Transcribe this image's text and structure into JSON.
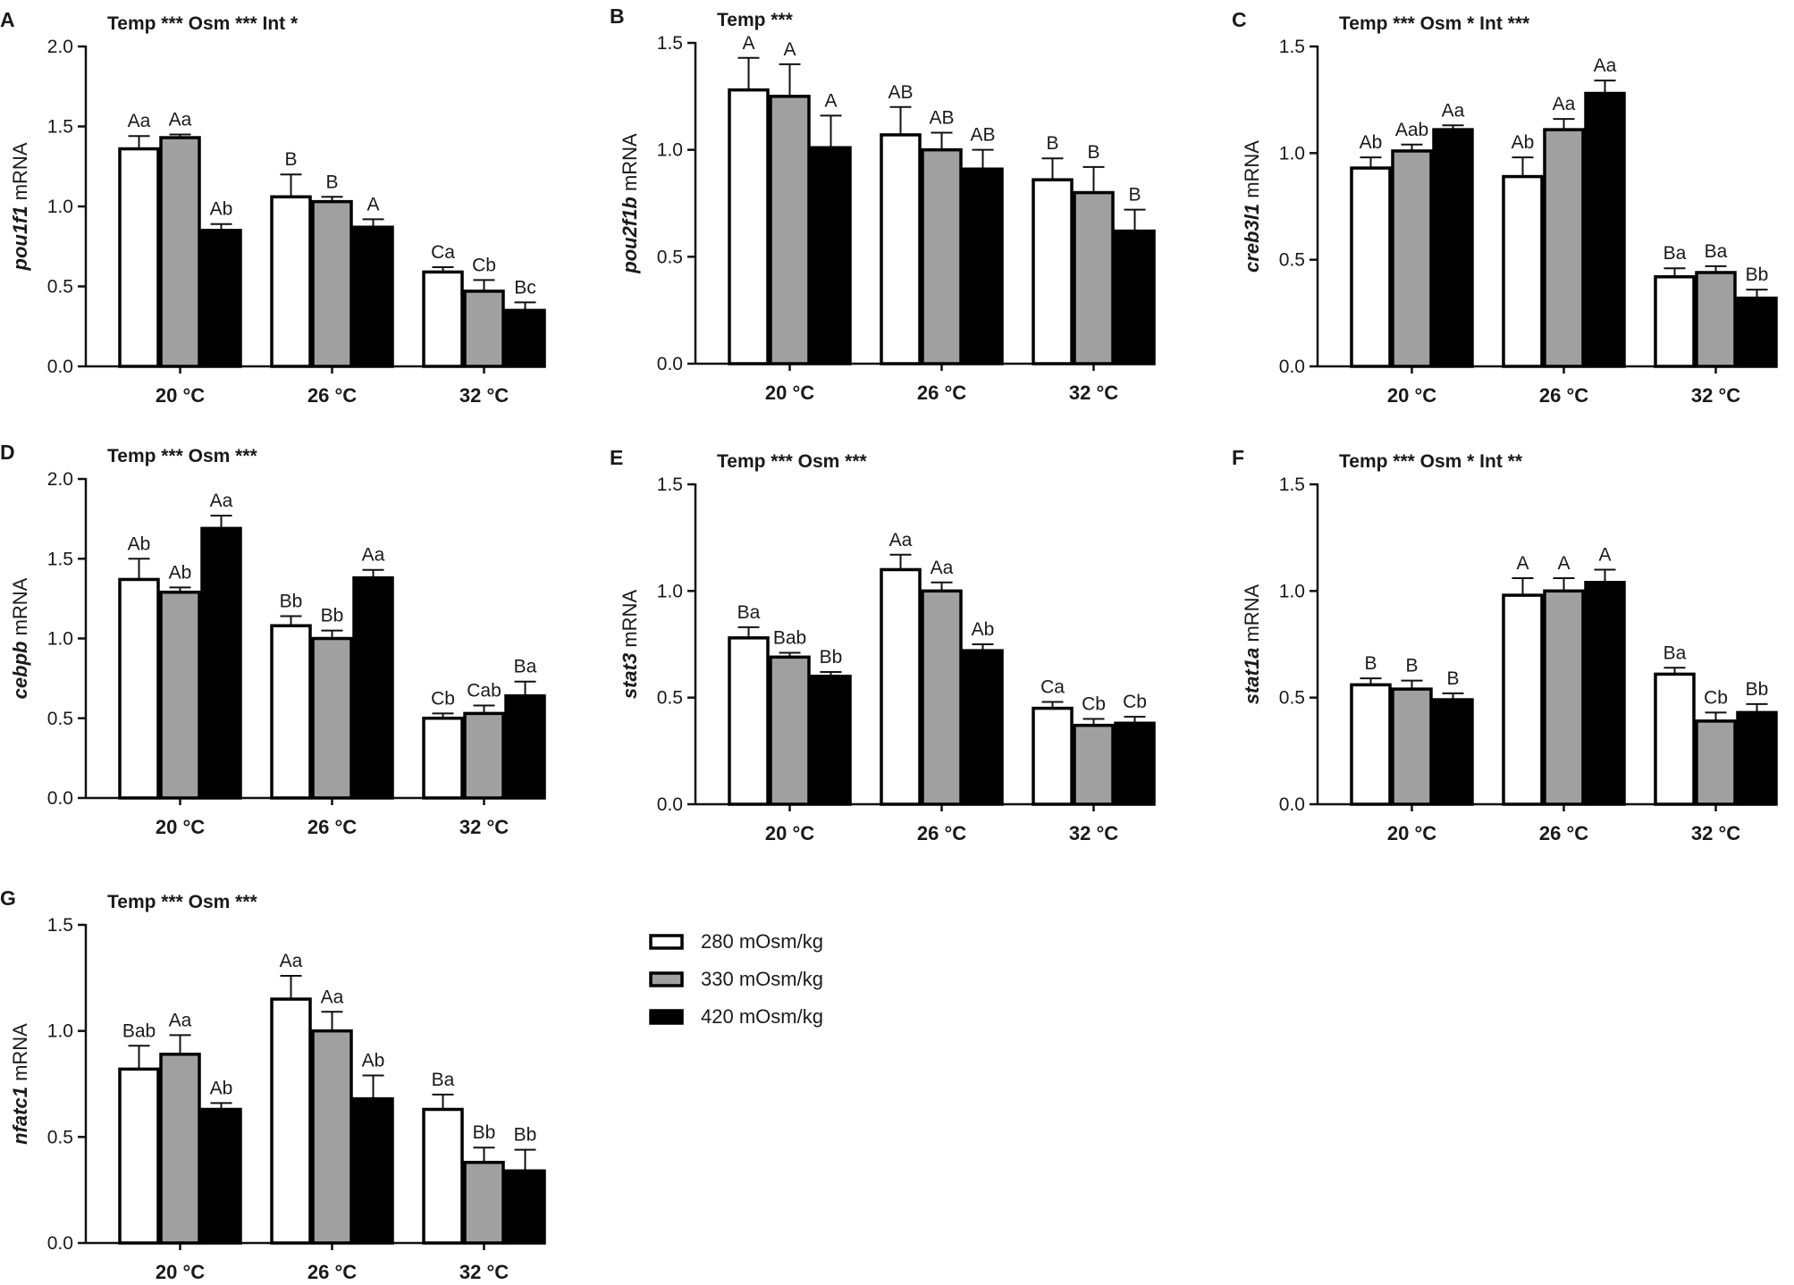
{
  "legend": [
    {
      "label": "280 mOsm/kg",
      "color": "#ffffff"
    },
    {
      "label": "330 mOsm/kg",
      "color": "#a0a0a0"
    },
    {
      "label": "420 mOsm/kg",
      "color": "#000000"
    }
  ],
  "chart_data": [
    {
      "panel": "A",
      "type": "bar",
      "gene": "pou1f1",
      "ylabel_suffix": " mRNA",
      "stats": "Temp ***  Osm ***  Int *",
      "categories": [
        "20 °C",
        "26 °C",
        "32 °C"
      ],
      "ylim": [
        0,
        2.0
      ],
      "yticks": [
        "0.0",
        "0.5",
        "1.0",
        "1.5",
        "2.0"
      ],
      "series": [
        {
          "name": "280 mOsm/kg",
          "values": [
            1.36,
            1.06,
            0.59
          ],
          "errors": [
            0.08,
            0.14,
            0.03
          ],
          "labels": [
            "Aa",
            "B",
            "Ca"
          ]
        },
        {
          "name": "330 mOsm/kg",
          "values": [
            1.43,
            1.03,
            0.47
          ],
          "errors": [
            0.02,
            0.03,
            0.07
          ],
          "labels": [
            "Aa",
            "B",
            "Cb"
          ]
        },
        {
          "name": "420 mOsm/kg",
          "values": [
            0.85,
            0.87,
            0.35
          ],
          "errors": [
            0.04,
            0.05,
            0.05
          ],
          "labels": [
            "Ab",
            "A",
            "Bc"
          ]
        }
      ]
    },
    {
      "panel": "B",
      "type": "bar",
      "gene": "pou2f1b",
      "ylabel_suffix": " mRNA",
      "stats": "Temp ***",
      "categories": [
        "20 °C",
        "26 °C",
        "32 °C"
      ],
      "ylim": [
        0,
        1.5
      ],
      "yticks": [
        "0.0",
        "0.5",
        "1.0",
        "1.5"
      ],
      "series": [
        {
          "name": "280 mOsm/kg",
          "values": [
            1.28,
            1.07,
            0.86
          ],
          "errors": [
            0.15,
            0.13,
            0.1
          ],
          "labels": [
            "A",
            "AB",
            "B"
          ]
        },
        {
          "name": "330 mOsm/kg",
          "values": [
            1.25,
            1.0,
            0.8
          ],
          "errors": [
            0.15,
            0.08,
            0.12
          ],
          "labels": [
            "A",
            "AB",
            "B"
          ]
        },
        {
          "name": "420 mOsm/kg",
          "values": [
            1.01,
            0.91,
            0.62
          ],
          "errors": [
            0.15,
            0.09,
            0.1
          ],
          "labels": [
            "A",
            "AB",
            "B"
          ]
        }
      ]
    },
    {
      "panel": "C",
      "type": "bar",
      "gene": "creb3l1",
      "ylabel_suffix": " mRNA",
      "stats": "Temp ***  Osm *  Int ***",
      "categories": [
        "20 °C",
        "26 °C",
        "32 °C"
      ],
      "ylim": [
        0,
        1.5
      ],
      "yticks": [
        "0.0",
        "0.5",
        "1.0",
        "1.5"
      ],
      "series": [
        {
          "name": "280 mOsm/kg",
          "values": [
            0.93,
            0.89,
            0.42
          ],
          "errors": [
            0.05,
            0.09,
            0.04
          ],
          "labels": [
            "Ab",
            "Ab",
            "Ba"
          ]
        },
        {
          "name": "330 mOsm/kg",
          "values": [
            1.01,
            1.11,
            0.44
          ],
          "errors": [
            0.03,
            0.05,
            0.03
          ],
          "labels": [
            "Aab",
            "Aa",
            "Ba"
          ]
        },
        {
          "name": "420 mOsm/kg",
          "values": [
            1.11,
            1.28,
            0.32
          ],
          "errors": [
            0.02,
            0.06,
            0.04
          ],
          "labels": [
            "Aa",
            "Aa",
            "Bb"
          ]
        }
      ]
    },
    {
      "panel": "D",
      "type": "bar",
      "gene": "cebpb",
      "ylabel_suffix": " mRNA",
      "stats": "Temp ***  Osm ***",
      "categories": [
        "20 °C",
        "26 °C",
        "32 °C"
      ],
      "ylim": [
        0,
        2.0
      ],
      "yticks": [
        "0.0",
        "0.5",
        "1.0",
        "1.5",
        "2.0"
      ],
      "series": [
        {
          "name": "280 mOsm/kg",
          "values": [
            1.37,
            1.08,
            0.5
          ],
          "errors": [
            0.13,
            0.06,
            0.03
          ],
          "labels": [
            "Ab",
            "Bb",
            "Cb"
          ]
        },
        {
          "name": "330 mOsm/kg",
          "values": [
            1.29,
            1.0,
            0.53
          ],
          "errors": [
            0.03,
            0.05,
            0.05
          ],
          "labels": [
            "Ab",
            "Bb",
            "Cab"
          ]
        },
        {
          "name": "420 mOsm/kg",
          "values": [
            1.69,
            1.38,
            0.64
          ],
          "errors": [
            0.08,
            0.05,
            0.09
          ],
          "labels": [
            "Aa",
            "Aa",
            "Ba"
          ]
        }
      ]
    },
    {
      "panel": "E",
      "type": "bar",
      "gene": "stat3",
      "ylabel_suffix": " mRNA",
      "stats": "Temp ***  Osm ***",
      "categories": [
        "20 °C",
        "26 °C",
        "32 °C"
      ],
      "ylim": [
        0,
        1.5
      ],
      "yticks": [
        "0.0",
        "0.5",
        "1.0",
        "1.5"
      ],
      "series": [
        {
          "name": "280 mOsm/kg",
          "values": [
            0.78,
            1.1,
            0.45
          ],
          "errors": [
            0.05,
            0.07,
            0.03
          ],
          "labels": [
            "Ba",
            "Aa",
            "Ca"
          ]
        },
        {
          "name": "330 mOsm/kg",
          "values": [
            0.69,
            1.0,
            0.37
          ],
          "errors": [
            0.02,
            0.04,
            0.03
          ],
          "labels": [
            "Bab",
            "Aa",
            "Cb"
          ]
        },
        {
          "name": "420 mOsm/kg",
          "values": [
            0.6,
            0.72,
            0.38
          ],
          "errors": [
            0.02,
            0.03,
            0.03
          ],
          "labels": [
            "Bb",
            "Ab",
            "Cb"
          ]
        }
      ]
    },
    {
      "panel": "F",
      "type": "bar",
      "gene": "stat1a",
      "ylabel_suffix": " mRNA",
      "stats": "Temp ***  Osm *  Int **",
      "categories": [
        "20 °C",
        "26 °C",
        "32 °C"
      ],
      "ylim": [
        0,
        1.5
      ],
      "yticks": [
        "0.0",
        "0.5",
        "1.0",
        "1.5"
      ],
      "series": [
        {
          "name": "280 mOsm/kg",
          "values": [
            0.56,
            0.98,
            0.61
          ],
          "errors": [
            0.03,
            0.08,
            0.03
          ],
          "labels": [
            "B",
            "A",
            "Ba"
          ]
        },
        {
          "name": "330 mOsm/kg",
          "values": [
            0.54,
            1.0,
            0.39
          ],
          "errors": [
            0.04,
            0.06,
            0.04
          ],
          "labels": [
            "B",
            "A",
            "Cb"
          ]
        },
        {
          "name": "420 mOsm/kg",
          "values": [
            0.49,
            1.04,
            0.43
          ],
          "errors": [
            0.03,
            0.06,
            0.04
          ],
          "labels": [
            "B",
            "A",
            "Bb"
          ]
        }
      ]
    },
    {
      "panel": "G",
      "type": "bar",
      "gene": "nfatc1",
      "ylabel_suffix": " mRNA",
      "stats": "Temp ***  Osm ***",
      "categories": [
        "20 °C",
        "26 °C",
        "32 °C"
      ],
      "ylim": [
        0,
        1.5
      ],
      "yticks": [
        "0.0",
        "0.5",
        "1.0",
        "1.5"
      ],
      "series": [
        {
          "name": "280 mOsm/kg",
          "values": [
            0.82,
            1.15,
            0.63
          ],
          "errors": [
            0.11,
            0.11,
            0.07
          ],
          "labels": [
            "Bab",
            "Aa",
            "Ba"
          ]
        },
        {
          "name": "330 mOsm/kg",
          "values": [
            0.89,
            1.0,
            0.38
          ],
          "errors": [
            0.09,
            0.09,
            0.07
          ],
          "labels": [
            "Aa",
            "Aa",
            "Bb"
          ]
        },
        {
          "name": "420 mOsm/kg",
          "values": [
            0.63,
            0.68,
            0.34
          ],
          "errors": [
            0.03,
            0.11,
            0.1
          ],
          "labels": [
            "Ab",
            "Ab",
            "Bb"
          ]
        }
      ]
    }
  ]
}
